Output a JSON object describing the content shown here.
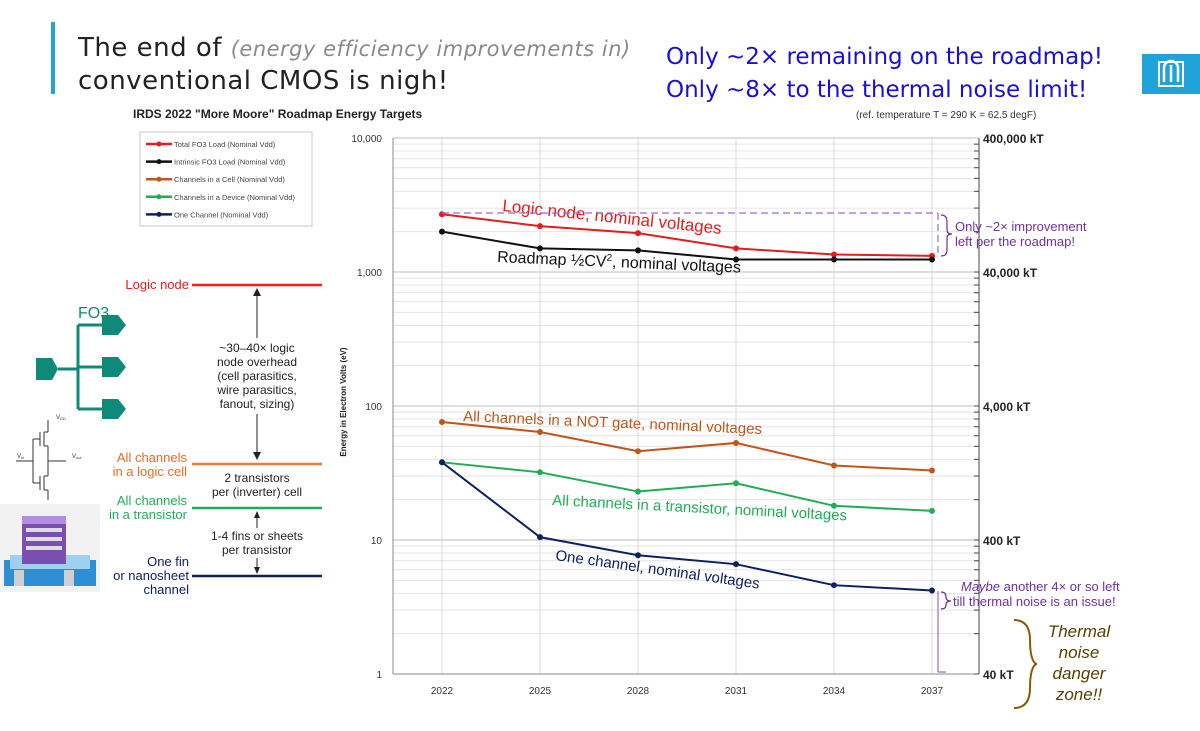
{
  "slide": {
    "title_line1_main": "The end of ",
    "title_line1_paren": "(energy efficiency improvements in)",
    "title_line2": "conventional CMOS is nigh!",
    "headline1": "Only ~2× remaining on the roadmap!",
    "headline2": "Only ~8× to the thermal noise limit!",
    "accent_color": "#1fa3d8",
    "logo_icon": "sandia-logo-icon"
  },
  "chart_data": {
    "type": "line",
    "title": "IRDS 2022 \"More Moore\" Roadmap Energy Targets",
    "ref_note": "(ref. temperature T = 290 K = 62.5 degF)",
    "ylabel": "Energy in Electron Volts (eV)",
    "yscale": "log",
    "ylim": [
      1,
      10000
    ],
    "y_ticks": [
      "10,000",
      "1,000",
      "100",
      "10",
      "1"
    ],
    "y_tick_values": [
      10000,
      1000,
      100,
      10,
      1
    ],
    "right_axis_labels": [
      "400,000 kT",
      "40,000 kT",
      "4,000 kT",
      "400 kT",
      "40 kT"
    ],
    "categories": [
      "2022",
      "2025",
      "2028",
      "2031",
      "2034",
      "2037"
    ],
    "series": [
      {
        "name": "Total FO3 Load (Nominal Vdd)",
        "color": "#e31c1c",
        "values": [
          2700,
          2200,
          1950,
          1500,
          1350,
          1320
        ]
      },
      {
        "name": "Intrinsic FO3 Load (Nominal Vdd)",
        "color": "#111111",
        "values": [
          2000,
          1500,
          1450,
          1240,
          1240,
          1240
        ]
      },
      {
        "name": "Channels in a Cell (Nominal Vdd)",
        "color": "#c0561a",
        "values": [
          76,
          64,
          46,
          53,
          36,
          33
        ]
      },
      {
        "name": "Channels in a Device (Nominal Vdd)",
        "color": "#1fae55",
        "values": [
          38,
          32,
          23,
          26.5,
          18,
          16.5
        ]
      },
      {
        "name": "One Channel (Nominal Vdd)",
        "color": "#0f2060",
        "values": [
          38,
          10.5,
          7.7,
          6.6,
          4.6,
          4.2
        ]
      }
    ],
    "annotations": {
      "logic": "Logic node, nominal voltages",
      "roadmap_prefix": "Roadmap ½CV",
      "roadmap_sup": "2",
      "roadmap_suffix": ", nominal voltages",
      "not_gate": "All channels in a NOT gate, nominal voltages",
      "transistor": "All channels in a transistor, nominal voltages",
      "one_channel": "One channel, nominal voltages",
      "improve1": "Only ~2× improvement",
      "improve2": "left per the roadmap!",
      "maybe_em": "Maybe",
      "maybe_rest": " another 4× or so left",
      "till": "till thermal noise is an issue!",
      "danger": [
        "Thermal",
        "noise",
        "danger",
        "zone!!"
      ],
      "purple": "#7030a0",
      "danger_color": "#5a3e00"
    }
  },
  "diagram": {
    "fo3_label": "FO3",
    "logic_node": "Logic node",
    "overhead": [
      "~30–40× logic",
      "node overhead",
      "(cell parasitics,",
      "wire parasitics,",
      "fanout, sizing)"
    ],
    "cell_label": [
      "All channels",
      "in a logic cell"
    ],
    "transistors": [
      "2 transistors",
      "per (inverter) cell"
    ],
    "transistor_label": [
      "All channels",
      "in a transistor"
    ],
    "fins": [
      "1-4 fins or sheets",
      "per transistor"
    ],
    "fin_label": [
      "One fin",
      "or nanosheet",
      "channel"
    ],
    "vdd": "V",
    "vdd_sub": "DD",
    "vin": "V",
    "vin_sub": "in",
    "vout": "V",
    "vout_sub": "out",
    "gate_color": "#0f8a78"
  }
}
